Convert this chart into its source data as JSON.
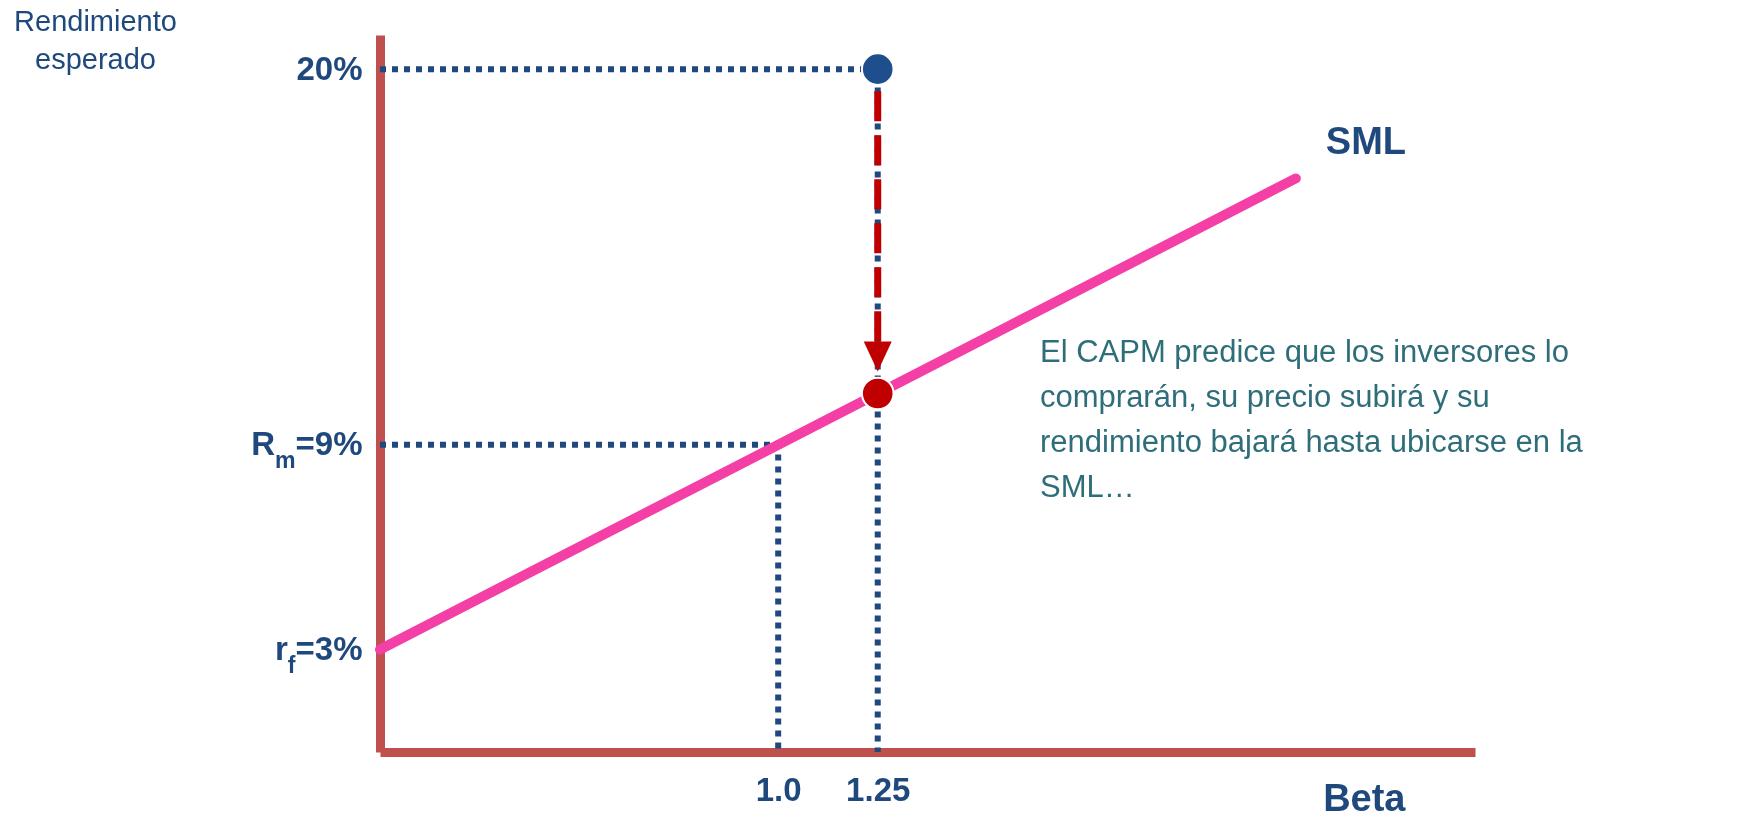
{
  "chart_data": {
    "type": "line",
    "xlabel": "Beta",
    "ylabel": "Rendimiento esperado",
    "xlim": [
      0,
      2.75
    ],
    "ylim": [
      0,
      21
    ],
    "xticks": [
      {
        "value": 1,
        "label": "1.0"
      },
      1.25
    ],
    "yticks": [
      {
        "value": 3,
        "label": "r$_{f}$=3%"
      },
      {
        "value": 9,
        "label": "R$_{m}$=9%"
      },
      {
        "value": 20,
        "label": "20%"
      }
    ],
    "grid": false,
    "annotations": [
      "El CAPM predice que los inversores lo comprarán, su precio subirá y su rendimiento bajará hasta ubicarse en la SML…"
    ],
    "series": [
      {
        "color": "#1f497d",
        "line_style": "dotted",
        "x": [
          0,
          1.25,
          1.25
        ],
        "values": [
          20,
          20,
          0
        ]
      },
      {
        "color": "#1f497d",
        "line_style": "dotted",
        "x": [
          0,
          1,
          1
        ],
        "values": [
          9,
          9,
          0
        ]
      },
      {
        "name": "SML",
        "color": "#f43fa6",
        "line_style": "solid",
        "x": [
          0,
          2.3
        ],
        "values": [
          3,
          16.8
        ]
      },
      {
        "type": "scatter",
        "marker": "circle",
        "x": [
          1.25,
          1.25
        ],
        "values": [
          20,
          10.5
        ],
        "colors": [
          "#1f4e8c",
          "#c00000"
        ]
      }
    ]
  }
}
